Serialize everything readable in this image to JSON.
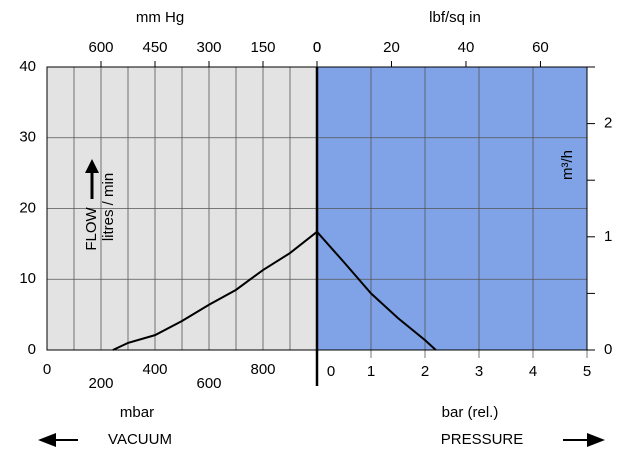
{
  "chart_data": {
    "type": "line",
    "y_label_flow": "FLOW",
    "y_label": "litres / min",
    "ylim": [
      0,
      40
    ],
    "yticks": [
      0,
      10,
      20,
      30,
      40
    ],
    "y2_label": "m³/h",
    "y2lim": [
      0,
      2.5
    ],
    "y2ticks": [
      0,
      1,
      2
    ],
    "y2minor": [
      0.5,
      1.5,
      2.5
    ],
    "line_color": "#000000",
    "vacuum": {
      "x_label": "mbar",
      "caption": "VACUUM",
      "xlim": [
        0,
        1000
      ],
      "xticks": [
        0,
        200,
        400,
        600,
        800
      ],
      "xgrid": [
        100,
        300,
        500,
        700,
        900
      ],
      "top_label": "mm Hg",
      "top_lim": [
        750,
        0
      ],
      "top_ticks": [
        600,
        450,
        300,
        150,
        0
      ],
      "color": "#e3e3e3",
      "x": [
        244,
        300,
        400,
        500,
        600,
        700,
        800,
        900,
        1000
      ],
      "values": [
        0,
        1,
        2.1,
        4.1,
        6.4,
        8.5,
        11.3,
        13.7,
        16.7
      ]
    },
    "pressure": {
      "x_label": "bar (rel.)",
      "caption": "PRESSURE",
      "xlim": [
        0,
        5
      ],
      "xticks": [
        0,
        1,
        2,
        3,
        4,
        5
      ],
      "top_label": "lbf/sq in",
      "top_lim": [
        0,
        72.5
      ],
      "top_ticks": [
        0,
        20,
        40,
        60
      ],
      "color": "#7fa3e6",
      "x": [
        0,
        0.5,
        1,
        1.5,
        2,
        2.2
      ],
      "values": [
        16.7,
        12.4,
        8,
        4.5,
        1.4,
        0
      ]
    }
  }
}
